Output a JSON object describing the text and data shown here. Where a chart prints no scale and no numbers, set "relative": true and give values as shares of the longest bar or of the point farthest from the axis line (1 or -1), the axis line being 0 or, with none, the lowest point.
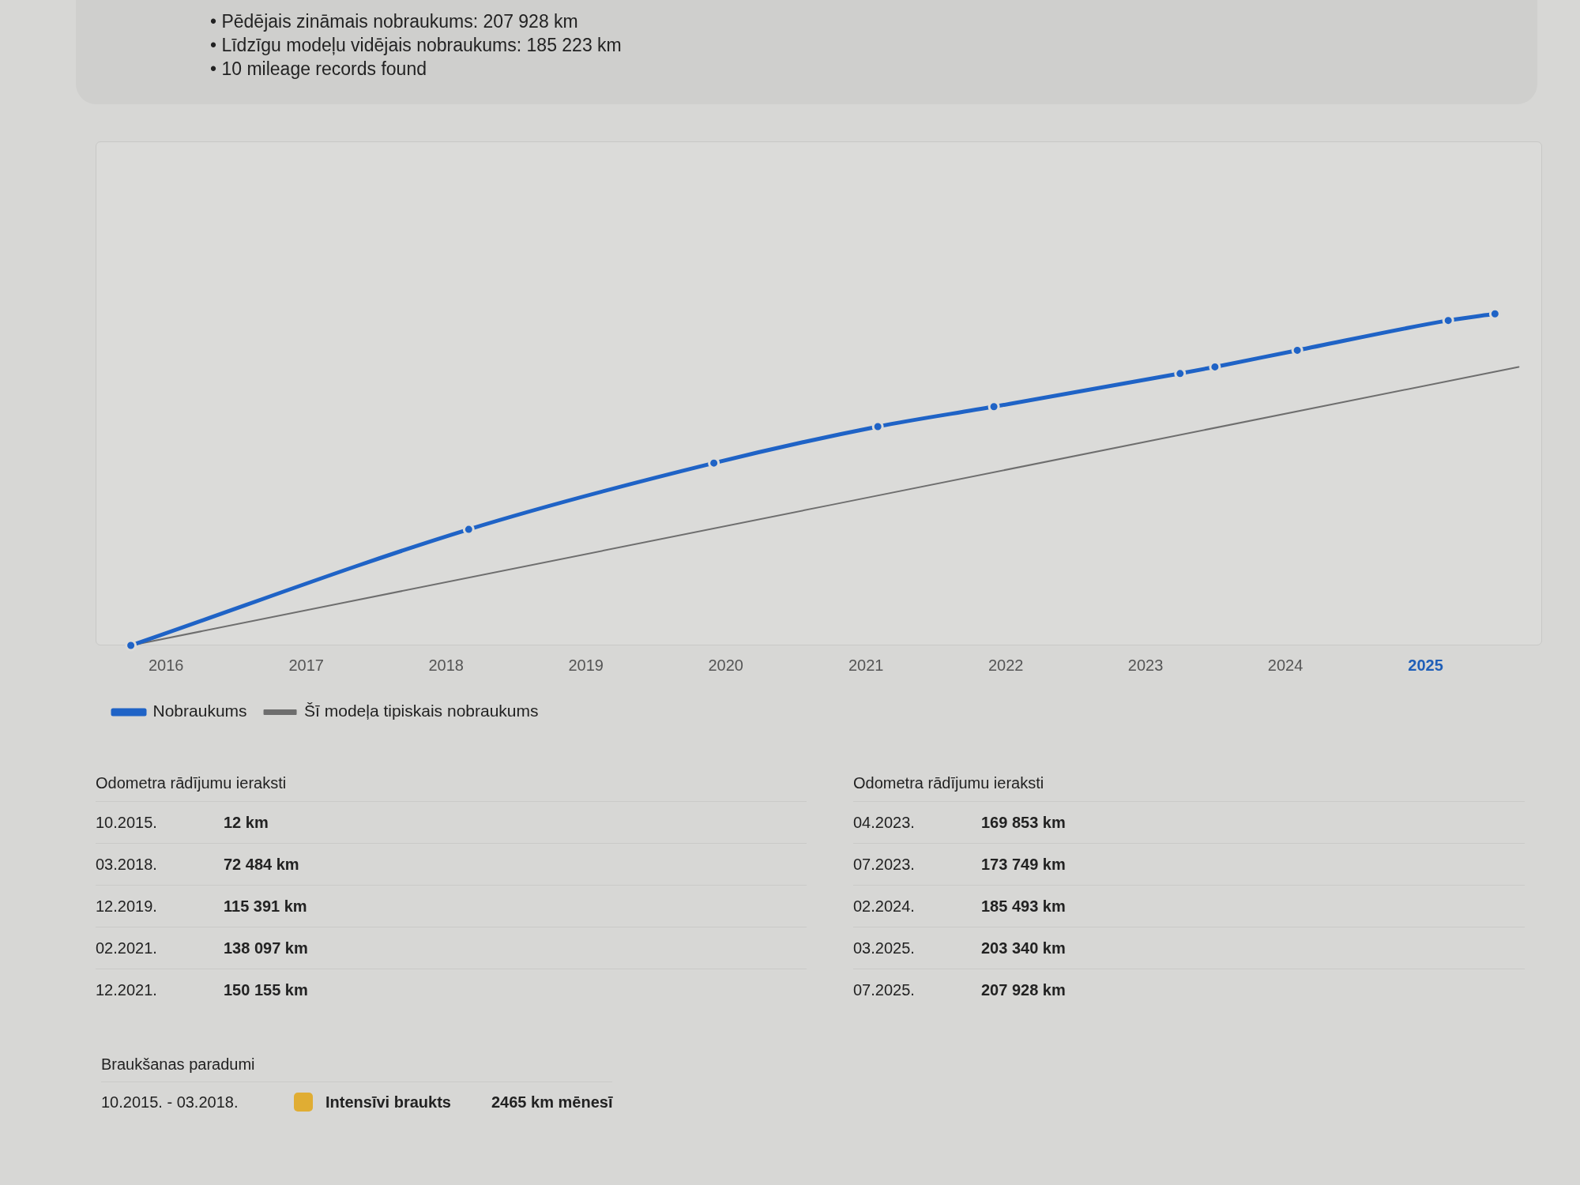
{
  "chart_data": {
    "type": "line",
    "relative": true,
    "annotations": [
      "• Pēdējais zināmais nobraukums: 207 928 km",
      "• Līdzīgu modeļu vidējais nobraukums: 185 223 km",
      "• 10 mileage records found",
      "Odometra rādījumu ieraksti",
      "10.2015.",
      "12 km",
      "03.2018.",
      "72 484 km",
      "12.2019.",
      "115 391 km",
      "02.2021.",
      "138 097 km",
      "12.2021.",
      "150 155 km",
      "Odometra rādījumu ieraksti",
      "04.2023.",
      "169 853 km",
      "07.2023.",
      "173 749 km",
      "02.2024.",
      "185 493 km",
      "03.2025.",
      "203 340 km",
      "07.2025.",
      "207 928 km",
      "Braukšanas paradumi",
      "10.2015. - 03.2018.",
      "Intensīvi braukts",
      "2465 km mēnesī"
    ],
    "xlim": [
      "2015-07",
      "2025-11"
    ],
    "xticks": [
      "2016",
      "2017",
      "2018",
      "2019",
      "2020",
      "2021",
      "2022",
      "2023",
      "2024",
      "2025"
    ],
    "tick_labels": "x",
    "grid": false,
    "legend": "bottom left",
    "series": [
      {
        "name": "Nobraukums",
        "color": "#1f63c6",
        "marker": "circle",
        "x": [
          "2015-10",
          "2018-03",
          "2019-12",
          "2021-02",
          "2021-12",
          "2023-04",
          "2023-07",
          "2024-02",
          "2025-03",
          "2025-07"
        ],
        "values": [
          0,
          0.35,
          0.55,
          0.66,
          0.72,
          0.82,
          0.84,
          0.89,
          0.98,
          1
        ]
      },
      {
        "name": "Šī modeļa tipiskais nobraukums",
        "color": "#6e6e6e",
        "marker": "none",
        "x": [
          "2015-10",
          "2025-09"
        ],
        "values": [
          0,
          0.84
        ]
      }
    ]
  }
}
